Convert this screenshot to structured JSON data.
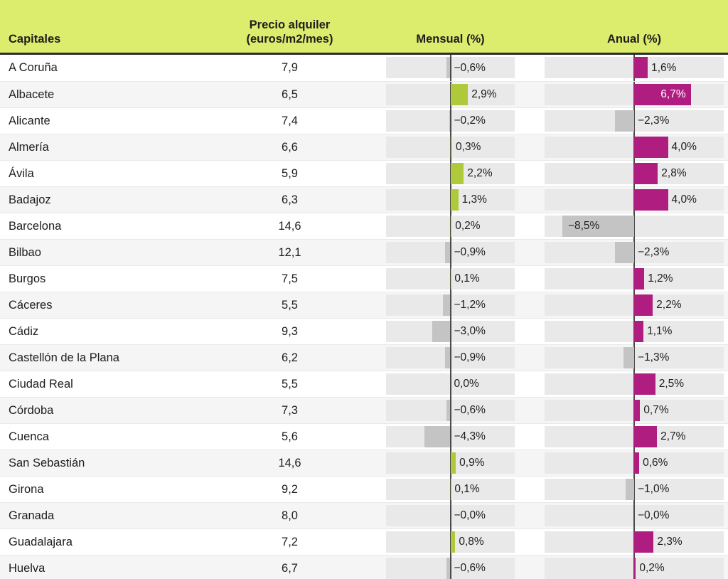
{
  "chart_data": {
    "type": "table",
    "columns": {
      "capitales": "Capitales",
      "precio_line1": "Precio alquiler",
      "precio_line2": "(euros/m2/mes)",
      "mensual": "Mensual (%)",
      "anual": "Anual (%)"
    },
    "axis": {
      "half_range_pct": 10.6,
      "zero_centered": true,
      "inside_label_threshold_pct": 5
    },
    "colors": {
      "header_bg": "#dcec6d",
      "mensual_positive": "#aeca3b",
      "anual_positive": "#b01d80",
      "negative": "#c4c4c4",
      "track": "#e9e9e9",
      "zero_line": "#4a4a4a",
      "alt_row_bg": "#f5f5f5",
      "inside_label_on_color": "#ffffff",
      "inside_label_on_gray": "#222222"
    },
    "rows": [
      {
        "city": "A Coruña",
        "price": 7.9,
        "price_label": "7,9",
        "mensual": -0.6,
        "mensual_label": "−0,6%",
        "anual": 1.6,
        "anual_label": "1,6%"
      },
      {
        "city": "Albacete",
        "price": 6.5,
        "price_label": "6,5",
        "mensual": 2.9,
        "mensual_label": "2,9%",
        "anual": 6.7,
        "anual_label": "6,7%"
      },
      {
        "city": "Alicante",
        "price": 7.4,
        "price_label": "7,4",
        "mensual": -0.2,
        "mensual_label": "−0,2%",
        "anual": -2.3,
        "anual_label": "−2,3%"
      },
      {
        "city": "Almería",
        "price": 6.6,
        "price_label": "6,6",
        "mensual": 0.3,
        "mensual_label": "0,3%",
        "anual": 4.0,
        "anual_label": "4,0%"
      },
      {
        "city": "Ávila",
        "price": 5.9,
        "price_label": "5,9",
        "mensual": 2.2,
        "mensual_label": "2,2%",
        "anual": 2.8,
        "anual_label": "2,8%"
      },
      {
        "city": "Badajoz",
        "price": 6.3,
        "price_label": "6,3",
        "mensual": 1.3,
        "mensual_label": "1,3%",
        "anual": 4.0,
        "anual_label": "4,0%"
      },
      {
        "city": "Barcelona",
        "price": 14.6,
        "price_label": "14,6",
        "mensual": 0.2,
        "mensual_label": "0,2%",
        "anual": -8.5,
        "anual_label": "−8,5%"
      },
      {
        "city": "Bilbao",
        "price": 12.1,
        "price_label": "12,1",
        "mensual": -0.9,
        "mensual_label": "−0,9%",
        "anual": -2.3,
        "anual_label": "−2,3%"
      },
      {
        "city": "Burgos",
        "price": 7.5,
        "price_label": "7,5",
        "mensual": 0.1,
        "mensual_label": "0,1%",
        "anual": 1.2,
        "anual_label": "1,2%"
      },
      {
        "city": "Cáceres",
        "price": 5.5,
        "price_label": "5,5",
        "mensual": -1.2,
        "mensual_label": "−1,2%",
        "anual": 2.2,
        "anual_label": "2,2%"
      },
      {
        "city": "Cádiz",
        "price": 9.3,
        "price_label": "9,3",
        "mensual": -3.0,
        "mensual_label": "−3,0%",
        "anual": 1.1,
        "anual_label": "1,1%"
      },
      {
        "city": "Castellón de la Plana",
        "price": 6.2,
        "price_label": "6,2",
        "mensual": -0.9,
        "mensual_label": "−0,9%",
        "anual": -1.3,
        "anual_label": "−1,3%"
      },
      {
        "city": "Ciudad Real",
        "price": 5.5,
        "price_label": "5,5",
        "mensual": 0.0,
        "mensual_label": "0,0%",
        "anual": 2.5,
        "anual_label": "2,5%"
      },
      {
        "city": "Córdoba",
        "price": 7.3,
        "price_label": "7,3",
        "mensual": -0.6,
        "mensual_label": "−0,6%",
        "anual": 0.7,
        "anual_label": "0,7%"
      },
      {
        "city": "Cuenca",
        "price": 5.6,
        "price_label": "5,6",
        "mensual": -4.3,
        "mensual_label": "−4,3%",
        "anual": 2.7,
        "anual_label": "2,7%"
      },
      {
        "city": "San Sebastián",
        "price": 14.6,
        "price_label": "14,6",
        "mensual": 0.9,
        "mensual_label": "0,9%",
        "anual": 0.6,
        "anual_label": "0,6%"
      },
      {
        "city": "Girona",
        "price": 9.2,
        "price_label": "9,2",
        "mensual": 0.1,
        "mensual_label": "0,1%",
        "anual": -1.0,
        "anual_label": "−1,0%"
      },
      {
        "city": "Granada",
        "price": 8.0,
        "price_label": "8,0",
        "mensual": -0.0,
        "mensual_label": "−0,0%",
        "anual": -0.0,
        "anual_label": "−0,0%"
      },
      {
        "city": "Guadalajara",
        "price": 7.2,
        "price_label": "7,2",
        "mensual": 0.8,
        "mensual_label": "0,8%",
        "anual": 2.3,
        "anual_label": "2,3%"
      },
      {
        "city": "Huelva",
        "price": 6.7,
        "price_label": "6,7",
        "mensual": -0.6,
        "mensual_label": "−0,6%",
        "anual": 0.2,
        "anual_label": "0,2%"
      }
    ]
  }
}
